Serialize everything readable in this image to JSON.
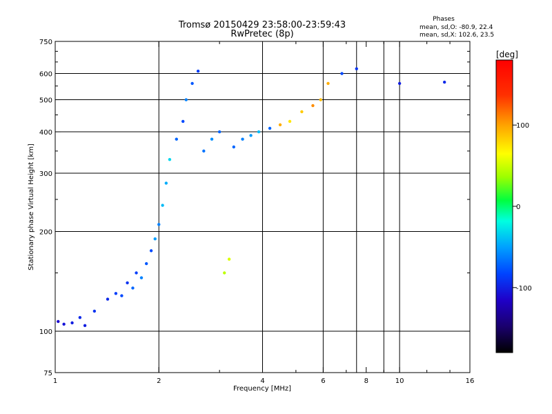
{
  "chart_data": {
    "type": "scatter",
    "title": "Tromsø 20150429 23:58:00-23:59:43",
    "subtitle": "RwPretec (8p)",
    "stats": {
      "heading": "Phases",
      "line1": "mean, sd,O: -80.9, 22.4",
      "line2": "mean, sd,X: 102.6, 23.5"
    },
    "xlabel": "Frequency [MHz]",
    "ylabel": "Stationary phase Virtual Height [km]",
    "xscale": "log",
    "yscale": "log",
    "xlim": [
      1,
      16
    ],
    "ylim": [
      75,
      750
    ],
    "xticks": [
      1,
      2,
      4,
      6,
      8,
      10,
      16
    ],
    "xtick_labels": [
      "1",
      "2",
      "4",
      "6",
      "8",
      "10",
      "16"
    ],
    "x_minor_ticks": [
      3,
      5,
      7,
      9,
      12,
      14
    ],
    "yticks": [
      75,
      100,
      200,
      300,
      400,
      500,
      600,
      750
    ],
    "ytick_labels": [
      "75",
      "100",
      "200",
      "300",
      "400",
      "500",
      "600",
      "750"
    ],
    "y_minor_ticks": [
      150,
      250,
      350,
      450,
      550,
      650,
      700
    ],
    "vertical_grid_x": [
      2,
      4,
      6,
      7.5,
      9,
      10
    ],
    "horizontal_grid_y": [
      100,
      200,
      300,
      400,
      500,
      600
    ],
    "grid": true,
    "colorbar": {
      "label": "[deg]",
      "range": [
        -180,
        180
      ],
      "ticks": [
        100,
        0,
        -100
      ],
      "tick_labels": [
        "100",
        "0",
        "-100"
      ],
      "colors": [
        "#000000",
        "#1a006e",
        "#1f00c8",
        "#0044ff",
        "#00a0ff",
        "#00ffe0",
        "#00ff40",
        "#9cff00",
        "#ffff00",
        "#ffa000",
        "#ff3000",
        "#ff0000"
      ]
    },
    "series": [
      {
        "x": [
          1.02,
          1.06,
          1.12,
          1.18,
          1.22,
          1.3,
          1.42,
          1.5,
          1.56,
          1.62,
          1.68,
          1.72,
          1.78,
          1.84,
          1.9,
          1.95,
          2.0,
          2.05,
          2.1,
          2.15,
          2.25,
          2.35,
          2.4,
          2.5,
          2.6,
          2.7,
          2.85,
          3.0,
          3.1,
          3.2,
          3.3,
          3.5,
          3.7,
          3.9,
          4.2,
          4.5,
          4.8,
          5.2,
          5.6,
          5.9,
          6.2,
          6.8,
          7.5,
          10.0,
          13.5
        ],
        "y": [
          107,
          105,
          106,
          110,
          104,
          115,
          125,
          130,
          128,
          140,
          135,
          150,
          145,
          160,
          175,
          190,
          210,
          240,
          280,
          330,
          380,
          430,
          500,
          560,
          610,
          350,
          380,
          400,
          150,
          165,
          360,
          380,
          390,
          400,
          410,
          420,
          430,
          460,
          480,
          500,
          560,
          600,
          620,
          560,
          565
        ],
        "phase": [
          -110,
          -105,
          -100,
          -95,
          -100,
          -90,
          -95,
          -85,
          -80,
          -90,
          -70,
          -85,
          -60,
          -75,
          -80,
          -50,
          -60,
          -40,
          -45,
          -30,
          -70,
          -80,
          -60,
          -75,
          -85,
          -65,
          -55,
          -70,
          60,
          70,
          -70,
          -60,
          -50,
          -40,
          -70,
          110,
          90,
          100,
          120,
          105,
          110,
          -80,
          -90,
          -100,
          -95
        ]
      }
    ]
  }
}
